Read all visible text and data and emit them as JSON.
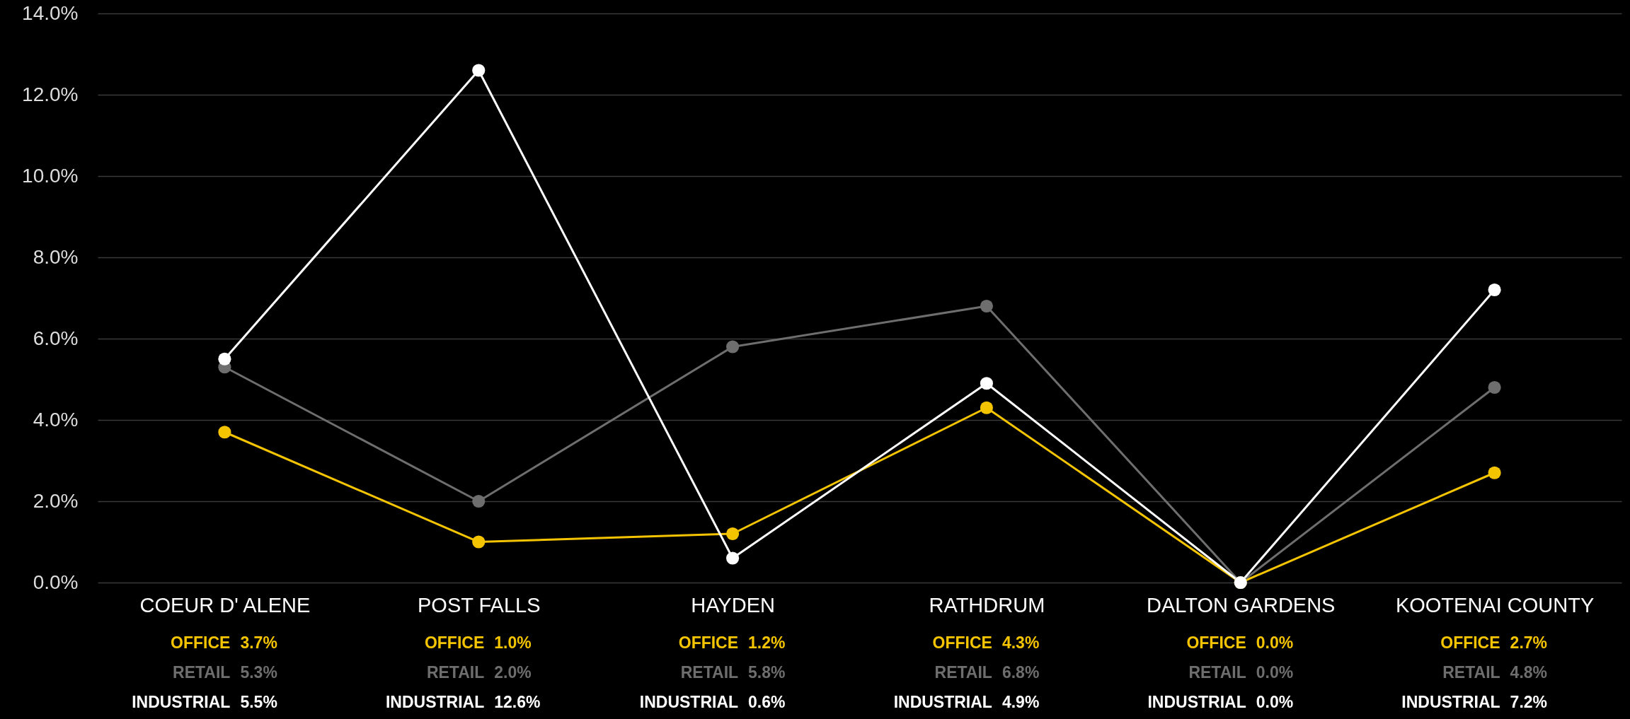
{
  "chart_data": {
    "type": "line",
    "categories": [
      "COEUR D' ALENE",
      "POST FALLS",
      "HAYDEN",
      "RATHDRUM",
      "DALTON GARDENS",
      "KOOTENAI COUNTY"
    ],
    "series": [
      {
        "name": "OFFICE",
        "color": "#f5c400",
        "values": [
          3.7,
          1.0,
          1.2,
          4.3,
          0.0,
          2.7
        ],
        "value_labels": [
          "3.7%",
          "1.0%",
          "1.2%",
          "4.3%",
          "0.0%",
          "2.7%"
        ]
      },
      {
        "name": "RETAIL",
        "color": "#6e6e6e",
        "values": [
          5.3,
          2.0,
          5.8,
          6.8,
          0.0,
          4.8
        ],
        "value_labels": [
          "5.3%",
          "2.0%",
          "5.8%",
          "6.8%",
          "0.0%",
          "4.8%"
        ]
      },
      {
        "name": "INDUSTRIAL",
        "color": "#ffffff",
        "values": [
          5.5,
          12.6,
          0.6,
          4.9,
          0.0,
          7.2
        ],
        "value_labels": [
          "5.5%",
          "12.6%",
          "0.6%",
          "4.9%",
          "0.0%",
          "7.2%"
        ]
      }
    ],
    "ylim": [
      0,
      14
    ],
    "yticks": [
      {
        "value": 0,
        "label": "0.0%"
      },
      {
        "value": 2,
        "label": "2.0%"
      },
      {
        "value": 4,
        "label": "4.0%"
      },
      {
        "value": 6,
        "label": "6.0%"
      },
      {
        "value": 8,
        "label": "8.0%"
      },
      {
        "value": 10,
        "label": "10.0%"
      },
      {
        "value": 12,
        "label": "12.0%"
      },
      {
        "value": 14,
        "label": "14.0%"
      }
    ],
    "grid": "y",
    "marker": "circle"
  }
}
